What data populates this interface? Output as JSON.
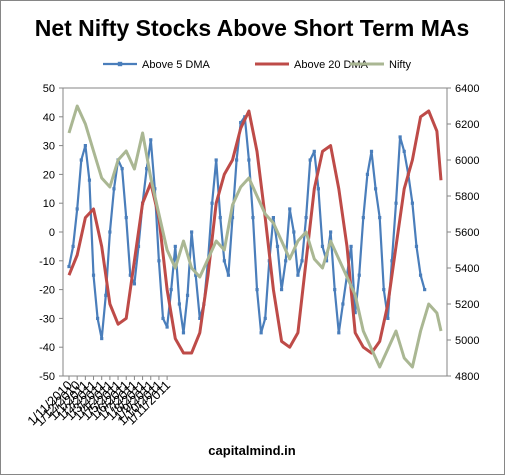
{
  "chart_data": {
    "type": "line",
    "title": "Net Nifty Stocks Above Short Term MAs",
    "source": "capitalmind.in",
    "x_ticks": [
      "1/11/2010",
      "1/12/2010",
      "1/1/2011",
      "1/2/2011",
      "1/3/2011",
      "1/4/2011",
      "1/5/2011",
      "1/6/2011",
      "1/7/2011",
      "1/8/2011",
      "1/9/2011",
      "1/10/2011",
      "1/11/2011"
    ],
    "y_left": {
      "min": -50,
      "max": 50,
      "ticks": [
        "50",
        "40",
        "30",
        "20",
        "10",
        "0",
        "-10",
        "-20",
        "-30",
        "-40",
        "-50"
      ]
    },
    "y_right": {
      "min": 4800,
      "max": 6400,
      "ticks": [
        "6400",
        "6200",
        "6000",
        "5800",
        "5600",
        "5400",
        "5200",
        "5000",
        "4800"
      ]
    },
    "grid": false,
    "legend_position": "top",
    "series": [
      {
        "name": "Above 5 DMA",
        "color": "#4a7ebb",
        "axis": "left",
        "marker": "square",
        "points": [
          [
            0,
            -12
          ],
          [
            1,
            -5
          ],
          [
            2,
            8
          ],
          [
            3,
            25
          ],
          [
            4,
            30
          ],
          [
            5,
            18
          ],
          [
            6,
            -15
          ],
          [
            7,
            -30
          ],
          [
            8,
            -37
          ],
          [
            9,
            -22
          ],
          [
            10,
            0
          ],
          [
            11,
            15
          ],
          [
            12,
            25
          ],
          [
            13,
            22
          ],
          [
            14,
            5
          ],
          [
            15,
            -15
          ],
          [
            16,
            -18
          ],
          [
            17,
            -5
          ],
          [
            18,
            10
          ],
          [
            19,
            22
          ],
          [
            20,
            32
          ],
          [
            21,
            15
          ],
          [
            22,
            -10
          ],
          [
            23,
            -30
          ],
          [
            24,
            -33
          ],
          [
            25,
            -20
          ],
          [
            26,
            -5
          ],
          [
            27,
            -25
          ],
          [
            28,
            -35
          ],
          [
            29,
            -22
          ],
          [
            30,
            0
          ],
          [
            31,
            -15
          ],
          [
            32,
            -30
          ],
          [
            33,
            -25
          ],
          [
            34,
            -10
          ],
          [
            35,
            10
          ],
          [
            36,
            25
          ],
          [
            37,
            5
          ],
          [
            38,
            -10
          ],
          [
            39,
            -15
          ],
          [
            40,
            5
          ],
          [
            41,
            25
          ],
          [
            42,
            38
          ],
          [
            43,
            40
          ],
          [
            44,
            25
          ],
          [
            45,
            5
          ],
          [
            46,
            -20
          ],
          [
            47,
            -35
          ],
          [
            48,
            -30
          ],
          [
            49,
            -10
          ],
          [
            50,
            5
          ],
          [
            51,
            -5
          ],
          [
            52,
            -20
          ],
          [
            53,
            -10
          ],
          [
            54,
            8
          ],
          [
            55,
            0
          ],
          [
            56,
            -15
          ],
          [
            57,
            -10
          ],
          [
            58,
            5
          ],
          [
            59,
            25
          ],
          [
            60,
            28
          ],
          [
            61,
            15
          ],
          [
            62,
            -5
          ],
          [
            63,
            -10
          ],
          [
            64,
            0
          ],
          [
            65,
            -20
          ],
          [
            66,
            -35
          ],
          [
            67,
            -25
          ],
          [
            68,
            -15
          ],
          [
            69,
            -5
          ],
          [
            70,
            -28
          ],
          [
            71,
            -15
          ],
          [
            72,
            5
          ],
          [
            73,
            20
          ],
          [
            74,
            28
          ],
          [
            75,
            15
          ],
          [
            76,
            5
          ],
          [
            77,
            -20
          ],
          [
            78,
            -30
          ],
          [
            79,
            -10
          ],
          [
            80,
            10
          ],
          [
            81,
            33
          ],
          [
            82,
            28
          ],
          [
            83,
            20
          ],
          [
            84,
            10
          ],
          [
            85,
            -5
          ],
          [
            86,
            -15
          ],
          [
            87,
            -20
          ]
        ],
        "x_start": "1/11/2010",
        "x_end": "~20/11/2011"
      },
      {
        "name": "Above 20 DMA",
        "color": "#be4b48",
        "axis": "left",
        "marker": "none",
        "points": [
          [
            0,
            -15
          ],
          [
            2,
            -8
          ],
          [
            4,
            5
          ],
          [
            6,
            8
          ],
          [
            8,
            -5
          ],
          [
            10,
            -25
          ],
          [
            12,
            -32
          ],
          [
            14,
            -30
          ],
          [
            16,
            -10
          ],
          [
            18,
            10
          ],
          [
            20,
            17
          ],
          [
            22,
            5
          ],
          [
            24,
            -20
          ],
          [
            26,
            -37
          ],
          [
            28,
            -42
          ],
          [
            30,
            -42
          ],
          [
            32,
            -35
          ],
          [
            34,
            -15
          ],
          [
            36,
            10
          ],
          [
            38,
            20
          ],
          [
            40,
            25
          ],
          [
            42,
            36
          ],
          [
            44,
            42
          ],
          [
            46,
            28
          ],
          [
            48,
            5
          ],
          [
            50,
            -20
          ],
          [
            52,
            -38
          ],
          [
            54,
            -40
          ],
          [
            56,
            -35
          ],
          [
            58,
            -10
          ],
          [
            60,
            15
          ],
          [
            62,
            28
          ],
          [
            64,
            30
          ],
          [
            66,
            15
          ],
          [
            68,
            -5
          ],
          [
            70,
            -35
          ],
          [
            72,
            -40
          ],
          [
            74,
            -42
          ],
          [
            76,
            -38
          ],
          [
            78,
            -25
          ],
          [
            80,
            -5
          ],
          [
            82,
            15
          ],
          [
            84,
            25
          ],
          [
            86,
            40
          ],
          [
            88,
            42
          ],
          [
            90,
            35
          ],
          [
            91,
            18
          ]
        ]
      },
      {
        "name": "Nifty",
        "color": "#aab793",
        "axis": "right",
        "marker": "none",
        "points": [
          [
            0,
            6150
          ],
          [
            2,
            6300
          ],
          [
            4,
            6200
          ],
          [
            6,
            6050
          ],
          [
            8,
            5900
          ],
          [
            10,
            5850
          ],
          [
            12,
            6000
          ],
          [
            14,
            6050
          ],
          [
            16,
            5950
          ],
          [
            18,
            6150
          ],
          [
            20,
            5900
          ],
          [
            22,
            5700
          ],
          [
            24,
            5500
          ],
          [
            26,
            5400
          ],
          [
            28,
            5550
          ],
          [
            30,
            5400
          ],
          [
            32,
            5350
          ],
          [
            34,
            5450
          ],
          [
            36,
            5550
          ],
          [
            38,
            5500
          ],
          [
            40,
            5750
          ],
          [
            42,
            5850
          ],
          [
            44,
            5900
          ],
          [
            46,
            5800
          ],
          [
            48,
            5700
          ],
          [
            50,
            5650
          ],
          [
            52,
            5550
          ],
          [
            54,
            5450
          ],
          [
            56,
            5550
          ],
          [
            58,
            5600
          ],
          [
            60,
            5450
          ],
          [
            62,
            5400
          ],
          [
            64,
            5550
          ],
          [
            66,
            5450
          ],
          [
            68,
            5350
          ],
          [
            70,
            5250
          ],
          [
            72,
            5050
          ],
          [
            74,
            4950
          ],
          [
            76,
            4850
          ],
          [
            78,
            4950
          ],
          [
            80,
            5050
          ],
          [
            82,
            4900
          ],
          [
            84,
            4850
          ],
          [
            86,
            5050
          ],
          [
            88,
            5200
          ],
          [
            90,
            5150
          ],
          [
            91,
            5050
          ]
        ]
      }
    ],
    "series_note_units": "points are [month_index_x2, value]; month index 0 = 1/11/2010, 2 per month"
  }
}
